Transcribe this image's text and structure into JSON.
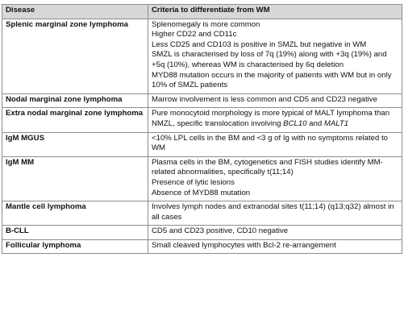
{
  "table": {
    "header": [
      "Disease",
      "Criteria to differentiate from WM"
    ],
    "rows": [
      {
        "disease": "Splenic marginal zone lymphoma",
        "criteria": [
          "Splenomegaly is more common",
          "Higher CD22 and CD11c",
          "Less CD25 and CD103 is positive in SMZL but negative in WM",
          "SMZL is characterised by loss of 7q (19%) along with +3q (19%) and +5q (10%), whereas WM is characterised by 6q deletion",
          "MYD88 mutation occurs in the majority of patients with WM but in only 10% of SMZL patients"
        ]
      },
      {
        "disease": "Nodal marginal zone lymphoma",
        "criteria": [
          "Marrow involvement is less common and CD5 and CD23 negative"
        ]
      },
      {
        "disease": "Extra nodal marginal zone lymphoma",
        "criteria": [
          [
            "Pure monocytoid morphology is more typical of MALT lymphoma than NMZL, specific translocation involving ",
            {
              "text": "BCL10",
              "italic": true
            },
            " and ",
            {
              "text": "MALT1",
              "italic": true
            }
          ]
        ]
      },
      {
        "disease": "IgM MGUS",
        "criteria": [
          "<10% LPL cells in the BM and <3 g of Ig with no symptoms related to WM"
        ]
      },
      {
        "disease": "IgM MM",
        "criteria": [
          "Plasma cells in the BM, cytogenetics and FISH studies identify MM-related abnormalities, specifically t(11;14)",
          "Presence of lytic lesions",
          "Absence of MYD88 mutation"
        ]
      },
      {
        "disease": "Mantle cell lymphoma",
        "criteria": [
          "Involves lymph nodes and extranodal sites t(11;14) (q13;q32) almost in all cases"
        ]
      },
      {
        "disease": "B-CLL",
        "criteria": [
          "CD5 and CD23 positive, CD10 negative"
        ]
      },
      {
        "disease": "Follicular lymphoma",
        "criteria": [
          "Small cleaved lymphocytes with Bcl-2 re-arrangement"
        ]
      }
    ]
  }
}
